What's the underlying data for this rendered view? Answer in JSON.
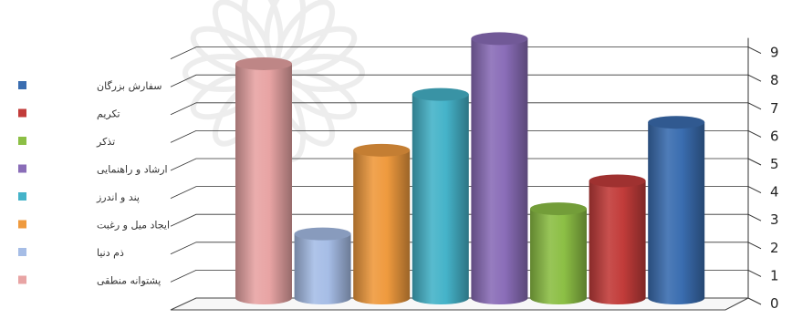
{
  "chart_data": {
    "type": "bar",
    "style": "3d-cylinder",
    "categories": [
      "پشتوانه منطقی",
      "ذم دنیا",
      "ایجاد میل و رغبت",
      "پند و اندرز",
      "ارشاد و راهنمایی",
      "تذکر",
      "تکریم",
      "سفارش بزرگان"
    ],
    "values": [
      8.4,
      2.3,
      5.3,
      7.3,
      9.3,
      3.2,
      4.2,
      6.3
    ],
    "colors": [
      "#e8a4a4",
      "#a6bde6",
      "#ef9a3e",
      "#45b3c9",
      "#8a6db8",
      "#8cbf45",
      "#c23c3a",
      "#3a6db0"
    ],
    "ylim": [
      0,
      9
    ],
    "yticks": [
      "0",
      "1",
      "2",
      "3",
      "4",
      "5",
      "6",
      "7",
      "8",
      "9"
    ],
    "title": "",
    "xlabel": "",
    "ylabel": "",
    "grid": true,
    "legend": {
      "placement": "left",
      "entries": [
        {
          "label": "سفارش بزرگان",
          "color": "#3a6db0"
        },
        {
          "label": "تکریم",
          "color": "#c23c3a"
        },
        {
          "label": "تذکر",
          "color": "#8cbf45"
        },
        {
          "label": "ارشاد و راهنمایی",
          "color": "#8a6db8"
        },
        {
          "label": "پند و اندرز",
          "color": "#45b3c9"
        },
        {
          "label": "ایجاد میل و رغبت",
          "color": "#ef9a3e"
        },
        {
          "label": "ذم دنیا",
          "color": "#a6bde6"
        },
        {
          "label": "پشتوانه منطقی",
          "color": "#e8a4a4"
        }
      ]
    }
  }
}
